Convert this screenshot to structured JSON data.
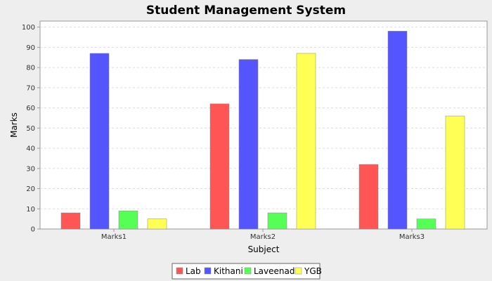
{
  "chart_data": {
    "type": "bar",
    "title": "Student Management System",
    "xlabel": "Subject",
    "ylabel": "Marks",
    "categories": [
      "Marks1",
      "Marks2",
      "Marks3"
    ],
    "ylim": [
      0,
      103
    ],
    "yticks": [
      0,
      10,
      20,
      30,
      40,
      50,
      60,
      70,
      80,
      90,
      100
    ],
    "grid": true,
    "legend_position": "bottom",
    "series": [
      {
        "name": "Lab",
        "color": "#ff5555",
        "values": [
          8,
          62,
          32
        ]
      },
      {
        "name": "Kithani",
        "color": "#5555ff",
        "values": [
          87,
          84,
          98
        ]
      },
      {
        "name": "Laveenad",
        "color": "#55ff55",
        "values": [
          9,
          8,
          5
        ]
      },
      {
        "name": "YGB",
        "color": "#ffff55",
        "values": [
          5,
          87,
          56
        ]
      }
    ]
  }
}
